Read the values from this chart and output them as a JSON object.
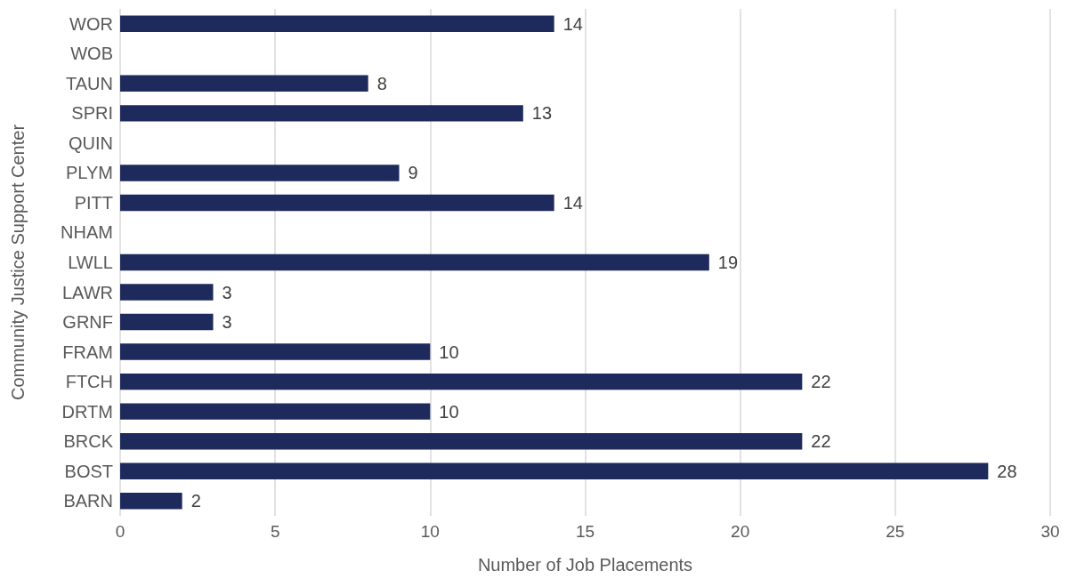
{
  "chart_data": {
    "type": "bar",
    "orientation": "horizontal",
    "xlabel": "Number of Job Placements",
    "ylabel": "Community Justice Support Center",
    "categories": [
      "WOR",
      "WOB",
      "TAUN",
      "SPRI",
      "QUIN",
      "PLYM",
      "PITT",
      "NHAM",
      "LWLL",
      "LAWR",
      "GRNF",
      "FRAM",
      "FTCH",
      "DRTM",
      "BRCK",
      "BOST",
      "BARN"
    ],
    "values": [
      14,
      null,
      8,
      13,
      null,
      9,
      14,
      null,
      19,
      3,
      3,
      10,
      22,
      10,
      22,
      28,
      2
    ],
    "color": "#1f2a5c",
    "xlim": [
      0,
      30
    ],
    "xticks": [
      0,
      5,
      10,
      15,
      20,
      25,
      30
    ],
    "grid": "x",
    "data_labels": true
  }
}
